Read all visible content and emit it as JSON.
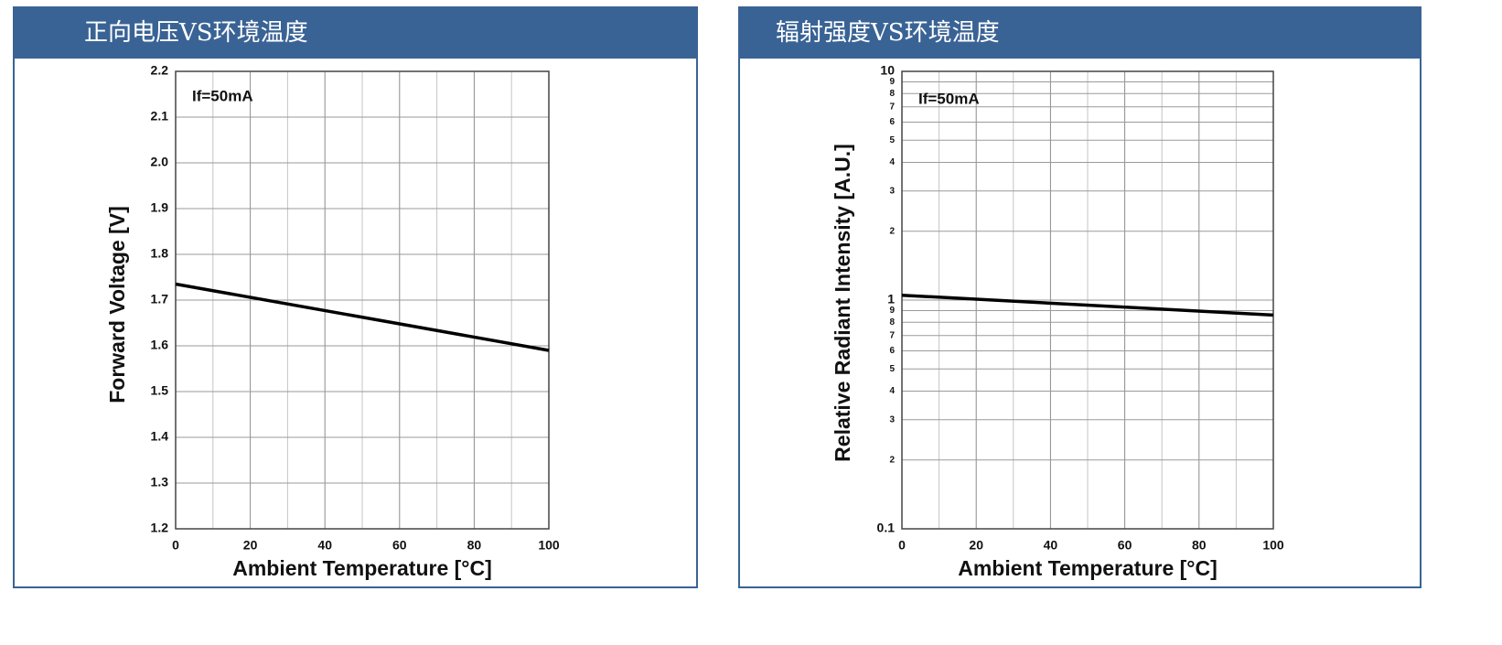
{
  "chart_data": [
    {
      "type": "line",
      "title": "正向电压VS环境温度",
      "xlabel": "Ambient Temperature [°C]",
      "ylabel": "Forward Voltage [V]",
      "annotation": "If=50mA",
      "x": [
        0,
        100
      ],
      "series": [
        {
          "name": "If=50mA",
          "color": "#000000",
          "values": [
            1.735,
            1.59
          ]
        }
      ],
      "xlim": [
        0,
        100
      ],
      "xticks": [
        0,
        20,
        40,
        60,
        80,
        100
      ],
      "ylim": [
        1.2,
        2.2
      ],
      "yticks": [
        1.2,
        1.3,
        1.4,
        1.5,
        1.6,
        1.7,
        1.8,
        1.9,
        {
          "value": 2,
          "label": "2.0"
        },
        2.1,
        2.2
      ],
      "grid": true,
      "minor_x_grid": true,
      "log_y": false
    },
    {
      "type": "line",
      "title": "辐射强度VS环境温度",
      "xlabel": "Ambient Temperature [°C]",
      "ylabel": "Relative Radiant Intensity [A.U.]",
      "annotation": "If=50mA",
      "x": [
        0,
        100
      ],
      "series": [
        {
          "name": "If=50mA",
          "color": "#000000",
          "values": [
            1.05,
            0.86
          ]
        }
      ],
      "xlim": [
        0,
        100
      ],
      "xticks": [
        0,
        20,
        40,
        60,
        80,
        100
      ],
      "ylim": [
        0.1,
        10
      ],
      "yticks": [
        0.1,
        {
          "value": 0.2,
          "label": "2"
        },
        {
          "value": 0.3,
          "label": "3"
        },
        {
          "value": 0.4,
          "label": "4"
        },
        {
          "value": 0.5,
          "label": "5"
        },
        {
          "value": 0.6,
          "label": "6"
        },
        {
          "value": 0.7,
          "label": "7"
        },
        {
          "value": 0.8,
          "label": "8"
        },
        {
          "value": 0.9,
          "label": "9"
        },
        1,
        2,
        3,
        4,
        5,
        6,
        7,
        8,
        9,
        10
      ],
      "grid": true,
      "minor_x_grid": true,
      "log_y": true
    }
  ]
}
